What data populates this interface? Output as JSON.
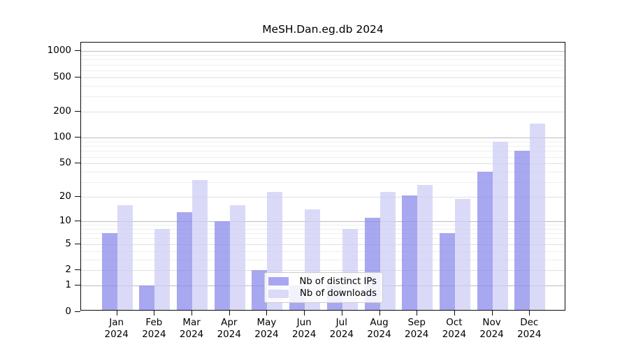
{
  "title": "MeSH.Dan.eg.db 2024",
  "chart_data": {
    "type": "bar",
    "title": "MeSH.Dan.eg.db 2024",
    "categories": [
      "Jan 2024",
      "Feb 2024",
      "Mar 2024",
      "Apr 2024",
      "May 2024",
      "Jun 2024",
      "Jul 2024",
      "Aug 2024",
      "Sep 2024",
      "Oct 2024",
      "Nov 2024",
      "Dec 2024"
    ],
    "x_tick_month": [
      "Jan",
      "Feb",
      "Mar",
      "Apr",
      "May",
      "Jun",
      "Jul",
      "Aug",
      "Sep",
      "Oct",
      "Nov",
      "Dec"
    ],
    "x_tick_year": "2024",
    "series": [
      {
        "name": "Nb of distinct IPs",
        "color": "rgba(139,139,235,0.75)",
        "color_hex_on_white": "#a8a8f0",
        "values": [
          7,
          1,
          13,
          10,
          2,
          1,
          1,
          11,
          21,
          7,
          40,
          70
        ]
      },
      {
        "name": "Nb of downloads",
        "color": "rgba(206,206,246,0.75)",
        "color_hex_on_white": "#dadaf8",
        "values": [
          16,
          8,
          32,
          16,
          23,
          14,
          8,
          23,
          28,
          19,
          90,
          145
        ]
      }
    ],
    "xlabel": "",
    "ylabel": "",
    "y_scale": "log1p",
    "y_ticks": [
      0,
      1,
      2,
      5,
      10,
      20,
      50,
      100,
      200,
      500,
      1000
    ],
    "y_minor_ticks": [
      3,
      4,
      6,
      7,
      8,
      9,
      30,
      40,
      60,
      70,
      80,
      90,
      300,
      400,
      600,
      700,
      800,
      900
    ],
    "ylim": [
      0,
      1200
    ],
    "grid": true,
    "legend_position": "lower center inside"
  }
}
